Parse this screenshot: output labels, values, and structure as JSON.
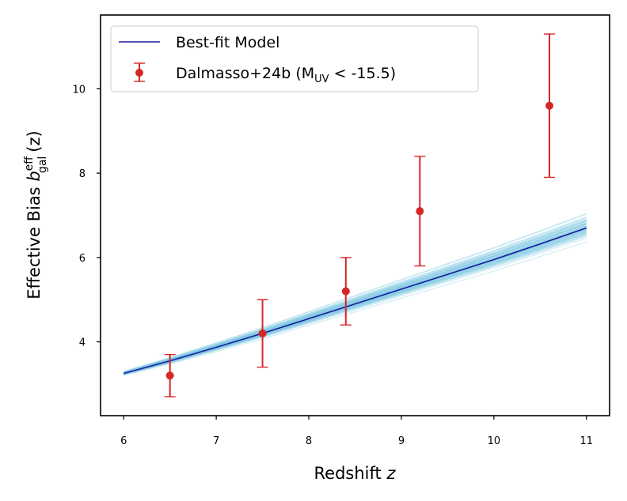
{
  "chart_data": {
    "type": "line",
    "title": "",
    "xlabel": "Redshift",
    "xlabel_var": "z",
    "ylabel": "Effective Bias",
    "ylabel_sym": "b",
    "ylabel_sup": "eff",
    "ylabel_sub": "gal",
    "ylabel_tail": "(z)",
    "xlim": [
      5.75,
      11.25
    ],
    "ylim": [
      2.25,
      11.75
    ],
    "xticks": [
      6,
      7,
      8,
      9,
      10,
      11
    ],
    "yticks": [
      4,
      6,
      8,
      10
    ],
    "grid": false,
    "legend_position": "top-left",
    "model": {
      "name": "Best-fit Model",
      "color": "#1a1aa0",
      "x": [
        6,
        6.5,
        7,
        7.5,
        8,
        8.5,
        9,
        9.5,
        10,
        10.5,
        11
      ],
      "y": [
        3.25,
        3.55,
        3.87,
        4.2,
        4.55,
        4.9,
        5.25,
        5.6,
        5.95,
        6.32,
        6.7
      ]
    },
    "samples": {
      "color": "#7ec8e3",
      "count": 60,
      "spread_at_z6": 0.06,
      "spread_at_z11": 0.42
    },
    "observations": {
      "name": "Dalmasso+24b",
      "name_cond_prefix": "(M",
      "name_cond_sub": "UV",
      "name_cond_suffix": " < -15.5)",
      "color": "#d62728",
      "points": [
        {
          "x": 6.5,
          "y": 3.2,
          "lo": 2.7,
          "hi": 3.7
        },
        {
          "x": 7.5,
          "y": 4.2,
          "lo": 3.4,
          "hi": 5.0
        },
        {
          "x": 8.4,
          "y": 5.2,
          "lo": 4.4,
          "hi": 6.0
        },
        {
          "x": 9.2,
          "y": 7.1,
          "lo": 5.8,
          "hi": 8.4
        },
        {
          "x": 10.6,
          "y": 9.6,
          "lo": 7.9,
          "hi": 11.3
        }
      ]
    }
  }
}
